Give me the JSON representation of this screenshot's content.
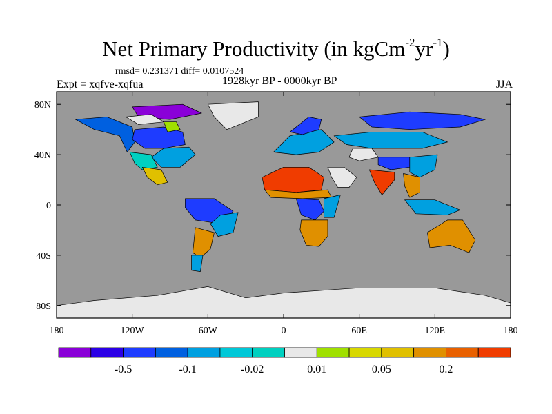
{
  "title_main": "Net Primary Productivity (in kgCm",
  "title_sup1": "-2",
  "title_mid": "yr",
  "title_sup2": "-1",
  "title_end": ")",
  "stats_text": "rmsd= 0.231371 diff= 0.0107524",
  "expt_text": "Expt = xqfve-xqfua",
  "period_text": "1928kyr BP - 0000kyr BP",
  "season_text": "JJA",
  "map": {
    "lon_range": [
      -180,
      180
    ],
    "lat_range": [
      -90,
      90
    ],
    "ocean_color": "#999999",
    "ice_color": "#e6e6e6",
    "x_ticks": [
      {
        "lon": -180,
        "label": "180"
      },
      {
        "lon": -120,
        "label": "120W"
      },
      {
        "lon": -60,
        "label": "60W"
      },
      {
        "lon": 0,
        "label": "0"
      },
      {
        "lon": 60,
        "label": "60E"
      },
      {
        "lon": 120,
        "label": "120E"
      },
      {
        "lon": 180,
        "label": "180"
      }
    ],
    "y_ticks": [
      {
        "lat": 80,
        "label": "80N"
      },
      {
        "lat": 40,
        "label": "40N"
      },
      {
        "lat": 0,
        "label": "0"
      },
      {
        "lat": -40,
        "label": "40S"
      },
      {
        "lat": -80,
        "label": "80S"
      }
    ],
    "regions": [
      {
        "name": "north-america-west",
        "color": "#0060e0",
        "lonlat": [
          [
            -165,
            68
          ],
          [
            -140,
            70
          ],
          [
            -120,
            62
          ],
          [
            -118,
            50
          ],
          [
            -124,
            42
          ],
          [
            -130,
            55
          ],
          [
            -150,
            60
          ]
        ]
      },
      {
        "name": "north-america-central",
        "color": "#1e3cff",
        "lonlat": [
          [
            -118,
            60
          ],
          [
            -95,
            62
          ],
          [
            -80,
            58
          ],
          [
            -78,
            48
          ],
          [
            -95,
            45
          ],
          [
            -110,
            45
          ],
          [
            -120,
            52
          ]
        ]
      },
      {
        "name": "north-america-east",
        "color": "#00a0e0",
        "lonlat": [
          [
            -95,
            45
          ],
          [
            -75,
            46
          ],
          [
            -70,
            40
          ],
          [
            -82,
            30
          ],
          [
            -97,
            30
          ],
          [
            -105,
            38
          ]
        ]
      },
      {
        "name": "usa-southwest",
        "color": "#00d0c0",
        "lonlat": [
          [
            -122,
            42
          ],
          [
            -105,
            40
          ],
          [
            -100,
            30
          ],
          [
            -112,
            28
          ],
          [
            -118,
            33
          ]
        ]
      },
      {
        "name": "mexico",
        "color": "#e0c000",
        "lonlat": [
          [
            -112,
            30
          ],
          [
            -97,
            28
          ],
          [
            -92,
            18
          ],
          [
            -100,
            16
          ],
          [
            -108,
            22
          ]
        ]
      },
      {
        "name": "canada-arctic",
        "color": "#8a00d8",
        "lonlat": [
          [
            -120,
            78
          ],
          [
            -80,
            80
          ],
          [
            -65,
            73
          ],
          [
            -90,
            68
          ],
          [
            -115,
            70
          ]
        ]
      },
      {
        "name": "canada-north",
        "color": "#e8e8e8",
        "lonlat": [
          [
            -125,
            70
          ],
          [
            -105,
            72
          ],
          [
            -95,
            66
          ],
          [
            -115,
            64
          ]
        ]
      },
      {
        "name": "canada-yellow",
        "color": "#a0e000",
        "lonlat": [
          [
            -95,
            66
          ],
          [
            -85,
            66
          ],
          [
            -82,
            60
          ],
          [
            -92,
            58
          ]
        ]
      },
      {
        "name": "amazon",
        "color": "#1e3cff",
        "lonlat": [
          [
            -78,
            5
          ],
          [
            -55,
            5
          ],
          [
            -40,
            -5
          ],
          [
            -50,
            -15
          ],
          [
            -70,
            -12
          ],
          [
            -78,
            -2
          ]
        ]
      },
      {
        "name": "brazil-east",
        "color": "#00a0e0",
        "lonlat": [
          [
            -50,
            -8
          ],
          [
            -36,
            -6
          ],
          [
            -40,
            -22
          ],
          [
            -52,
            -25
          ],
          [
            -58,
            -15
          ]
        ]
      },
      {
        "name": "south-america-south",
        "color": "#e09000",
        "lonlat": [
          [
            -70,
            -18
          ],
          [
            -55,
            -22
          ],
          [
            -58,
            -35
          ],
          [
            -66,
            -42
          ],
          [
            -72,
            -38
          ]
        ]
      },
      {
        "name": "patagonia",
        "color": "#00a0e0",
        "lonlat": [
          [
            -73,
            -40
          ],
          [
            -64,
            -40
          ],
          [
            -66,
            -53
          ],
          [
            -73,
            -52
          ]
        ]
      },
      {
        "name": "sahara",
        "color": "#f03c00",
        "lonlat": [
          [
            -17,
            22
          ],
          [
            0,
            30
          ],
          [
            20,
            30
          ],
          [
            32,
            22
          ],
          [
            30,
            12
          ],
          [
            10,
            10
          ],
          [
            -15,
            12
          ]
        ]
      },
      {
        "name": "sahel",
        "color": "#e09000",
        "lonlat": [
          [
            -15,
            12
          ],
          [
            10,
            10
          ],
          [
            35,
            12
          ],
          [
            38,
            6
          ],
          [
            15,
            5
          ],
          [
            -10,
            6
          ]
        ]
      },
      {
        "name": "central-africa",
        "color": "#1e3cff",
        "lonlat": [
          [
            10,
            5
          ],
          [
            28,
            4
          ],
          [
            32,
            -5
          ],
          [
            25,
            -12
          ],
          [
            14,
            -8
          ]
        ]
      },
      {
        "name": "east-africa",
        "color": "#00a0e0",
        "lonlat": [
          [
            32,
            5
          ],
          [
            45,
            8
          ],
          [
            40,
            -10
          ],
          [
            32,
            -10
          ]
        ]
      },
      {
        "name": "southern-africa",
        "color": "#e09000",
        "lonlat": [
          [
            14,
            -12
          ],
          [
            35,
            -12
          ],
          [
            35,
            -25
          ],
          [
            28,
            -33
          ],
          [
            18,
            -32
          ],
          [
            13,
            -20
          ]
        ]
      },
      {
        "name": "arabia",
        "color": "#e8e8e8",
        "lonlat": [
          [
            35,
            30
          ],
          [
            48,
            30
          ],
          [
            58,
            22
          ],
          [
            52,
            14
          ],
          [
            43,
            14
          ],
          [
            38,
            22
          ]
        ]
      },
      {
        "name": "europe",
        "color": "#00a0e0",
        "lonlat": [
          [
            -8,
            42
          ],
          [
            5,
            55
          ],
          [
            30,
            60
          ],
          [
            40,
            50
          ],
          [
            28,
            42
          ],
          [
            10,
            40
          ]
        ]
      },
      {
        "name": "scandinavia",
        "color": "#1e3cff",
        "lonlat": [
          [
            5,
            58
          ],
          [
            20,
            70
          ],
          [
            30,
            68
          ],
          [
            28,
            60
          ],
          [
            15,
            56
          ]
        ]
      },
      {
        "name": "siberia-north",
        "color": "#1e3cff",
        "lonlat": [
          [
            60,
            70
          ],
          [
            100,
            74
          ],
          [
            140,
            72
          ],
          [
            160,
            68
          ],
          [
            140,
            62
          ],
          [
            100,
            60
          ],
          [
            70,
            62
          ]
        ]
      },
      {
        "name": "siberia-south",
        "color": "#00a0e0",
        "lonlat": [
          [
            40,
            55
          ],
          [
            70,
            58
          ],
          [
            110,
            58
          ],
          [
            130,
            50
          ],
          [
            110,
            45
          ],
          [
            70,
            45
          ],
          [
            50,
            48
          ]
        ]
      },
      {
        "name": "central-asia",
        "color": "#e8e8e8",
        "lonlat": [
          [
            55,
            45
          ],
          [
            70,
            45
          ],
          [
            75,
            38
          ],
          [
            60,
            35
          ],
          [
            52,
            38
          ]
        ]
      },
      {
        "name": "tibet",
        "color": "#1e3cff",
        "lonlat": [
          [
            75,
            38
          ],
          [
            100,
            38
          ],
          [
            100,
            30
          ],
          [
            85,
            28
          ],
          [
            75,
            32
          ]
        ]
      },
      {
        "name": "india",
        "color": "#f03c00",
        "lonlat": [
          [
            68,
            28
          ],
          [
            88,
            26
          ],
          [
            88,
            20
          ],
          [
            78,
            8
          ],
          [
            72,
            18
          ]
        ]
      },
      {
        "name": "china-east",
        "color": "#00a0e0",
        "lonlat": [
          [
            100,
            38
          ],
          [
            122,
            40
          ],
          [
            120,
            28
          ],
          [
            108,
            22
          ],
          [
            100,
            26
          ]
        ]
      },
      {
        "name": "southeast-asia",
        "color": "#e09000",
        "lonlat": [
          [
            95,
            25
          ],
          [
            108,
            22
          ],
          [
            108,
            10
          ],
          [
            100,
            6
          ],
          [
            96,
            15
          ]
        ]
      },
      {
        "name": "indonesia",
        "color": "#00a0e0",
        "lonlat": [
          [
            96,
            4
          ],
          [
            120,
            4
          ],
          [
            140,
            -4
          ],
          [
            130,
            -8
          ],
          [
            105,
            -7
          ]
        ]
      },
      {
        "name": "australia",
        "color": "#e09000",
        "lonlat": [
          [
            114,
            -22
          ],
          [
            130,
            -12
          ],
          [
            142,
            -12
          ],
          [
            152,
            -28
          ],
          [
            147,
            -38
          ],
          [
            132,
            -32
          ],
          [
            116,
            -34
          ]
        ]
      },
      {
        "name": "greenland",
        "color": "#e8e8e8",
        "lonlat": [
          [
            -60,
            80
          ],
          [
            -20,
            82
          ],
          [
            -20,
            70
          ],
          [
            -45,
            60
          ],
          [
            -55,
            70
          ]
        ]
      },
      {
        "name": "antarctica",
        "color": "#e8e8e8",
        "lonlat": [
          [
            -180,
            -80
          ],
          [
            -150,
            -76
          ],
          [
            -100,
            -72
          ],
          [
            -60,
            -65
          ],
          [
            -30,
            -74
          ],
          [
            0,
            -70
          ],
          [
            60,
            -66
          ],
          [
            120,
            -66
          ],
          [
            160,
            -72
          ],
          [
            180,
            -78
          ],
          [
            180,
            -90
          ],
          [
            -180,
            -90
          ]
        ]
      }
    ]
  },
  "colorbar": {
    "colors": [
      "#8a00d8",
      "#2b00e6",
      "#1e3cff",
      "#0060e0",
      "#00a0e0",
      "#00c8d8",
      "#00d0c0",
      "#e8e8e8",
      "#a0e000",
      "#d8d800",
      "#e0c000",
      "#e09000",
      "#e86000",
      "#f03c00"
    ],
    "labels": [
      {
        "box": 1,
        "label": "-0.5"
      },
      {
        "box": 3,
        "label": "-0.1"
      },
      {
        "box": 5,
        "label": "-0.02"
      },
      {
        "box": 7,
        "label": "0.01"
      },
      {
        "box": 9,
        "label": "0.05"
      },
      {
        "box": 11,
        "label": "0.2"
      }
    ]
  }
}
